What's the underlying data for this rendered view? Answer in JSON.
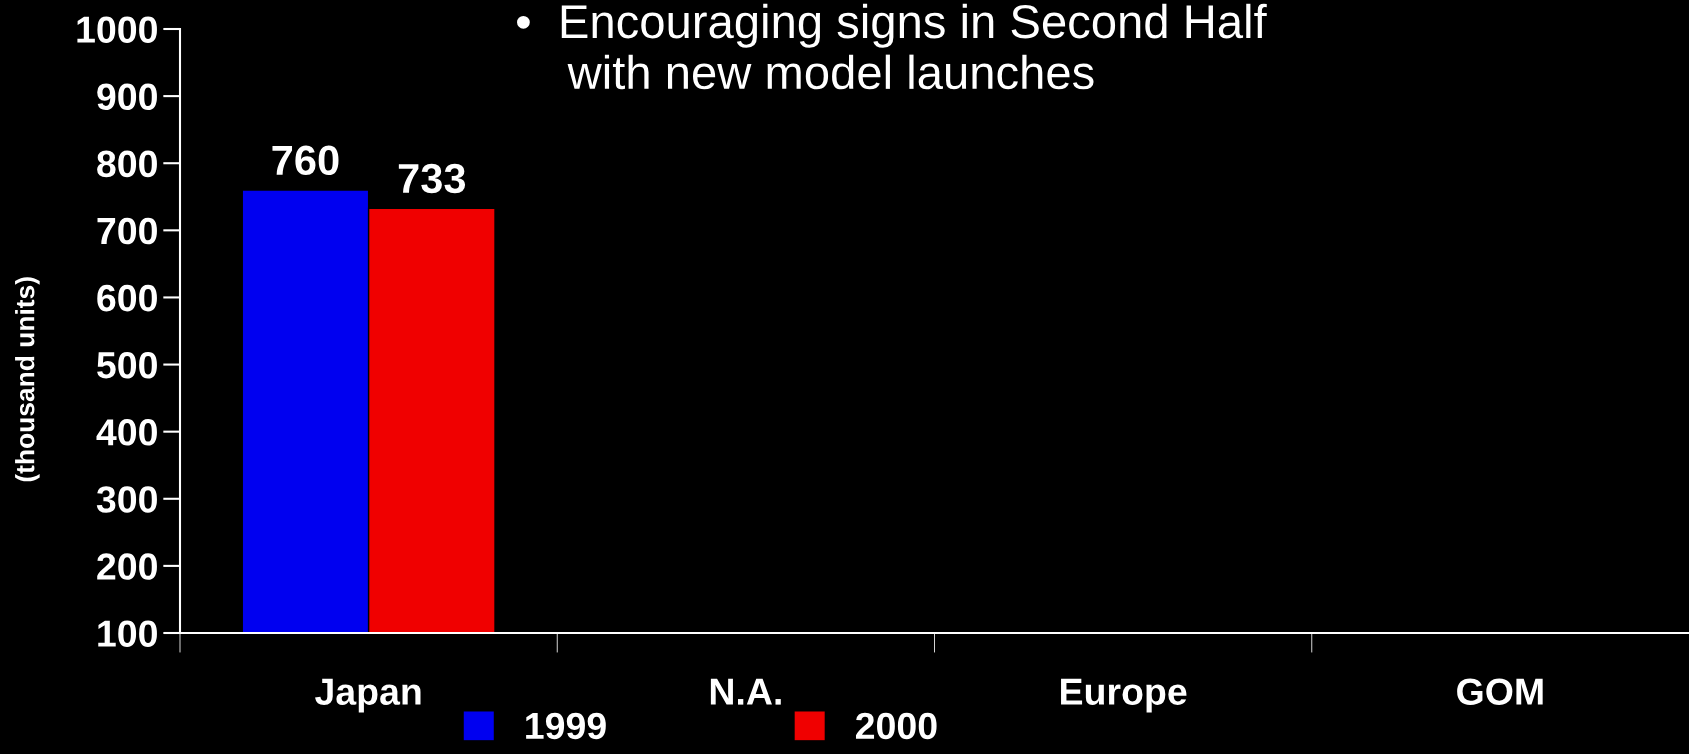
{
  "chart_data": {
    "type": "bar",
    "ylabel": "(thousand units)",
    "categories": [
      "Japan",
      "N.A.",
      "Europe",
      "GOM"
    ],
    "series": [
      {
        "name": "1999",
        "color": "#0000f0",
        "values": [
          760,
          null,
          null,
          null
        ]
      },
      {
        "name": "2000",
        "color": "#f00000",
        "values": [
          733,
          null,
          null,
          null
        ]
      }
    ],
    "ylim": [
      100,
      1000
    ],
    "yticks": [
      100,
      200,
      300,
      400,
      500,
      600,
      700,
      800,
      900,
      1000
    ],
    "data_labels": true,
    "legend": "bottom",
    "grid": false,
    "annotations": [
      "•  Encouraging signs in Second Half\n    with new model launches"
    ]
  }
}
